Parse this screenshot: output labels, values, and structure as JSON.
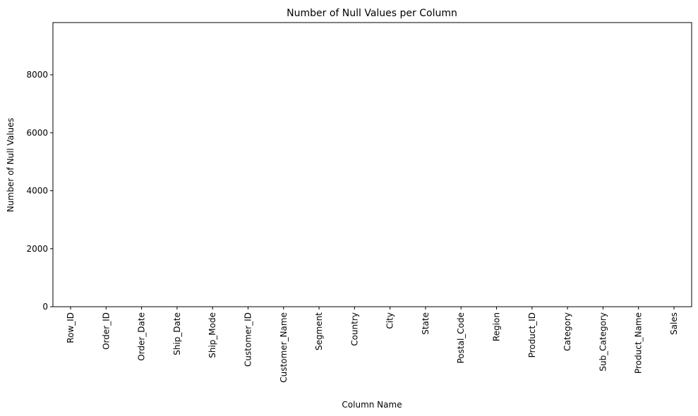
{
  "chart_data": {
    "type": "bar",
    "title": "Number of Null Values per Column",
    "xlabel": "Column Name",
    "ylabel": "Number of Null Values",
    "categories": [
      "Row_ID",
      "Order_ID",
      "Order_Date",
      "Ship_Date",
      "Ship_Mode",
      "Customer_ID",
      "Customer_Name",
      "Segment",
      "Country",
      "City",
      "State",
      "Postal_Code",
      "Region",
      "Product_ID",
      "Category",
      "Sub_Category",
      "Product_Name",
      "Sales"
    ],
    "values": [
      0,
      0,
      0,
      0,
      0,
      0,
      0,
      0,
      0,
      0,
      0,
      0,
      0,
      0,
      0,
      0,
      0,
      0
    ],
    "ylim": [
      0,
      9800
    ],
    "yticks": [
      0,
      2000,
      4000,
      6000,
      8000
    ],
    "ytick_labels": [
      "0",
      "2000",
      "4000",
      "6000",
      "8000"
    ],
    "grid": false,
    "bar_color": "#1f77b4"
  }
}
